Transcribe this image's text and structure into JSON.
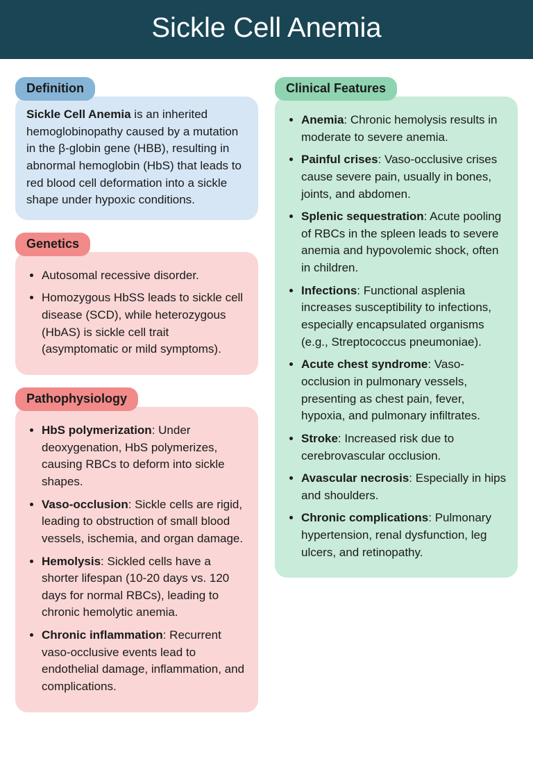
{
  "title": "Sickle Cell Anemia",
  "colors": {
    "header_bg": "#1a4555",
    "header_text": "#ffffff",
    "tag_blue": "#86b4d6",
    "box_blue": "#d6e6f5",
    "tag_red": "#f28a8a",
    "box_red": "#fad6d6",
    "tag_green": "#8fd4b0",
    "box_green": "#c9ebd9",
    "body_text": "#1a1a1a"
  },
  "typography": {
    "title_fontsize": 40,
    "tag_fontsize": 18,
    "body_fontsize": 17,
    "line_height": 1.45
  },
  "sections": {
    "definition": {
      "heading": "Definition",
      "paragraph": {
        "term": "Sickle Cell Anemia",
        "rest": " is an inherited hemoglobinopathy caused by a mutation in the β-globin gene (HBB), resulting in abnormal hemoglobin (HbS) that leads to red blood cell deformation into a sickle shape under hypoxic conditions."
      }
    },
    "genetics": {
      "heading": "Genetics",
      "items": [
        {
          "term": "",
          "rest": "Autosomal recessive disorder."
        },
        {
          "term": "",
          "rest": "Homozygous HbSS leads to sickle cell disease (SCD), while heterozygous (HbAS) is sickle cell trait (asymptomatic or mild symptoms)."
        }
      ]
    },
    "pathophysiology": {
      "heading": "Pathophysiology",
      "items": [
        {
          "term": "HbS polymerization",
          "rest": ": Under deoxygenation, HbS polymerizes, causing RBCs to deform into sickle shapes."
        },
        {
          "term": "Vaso-occlusion",
          "rest": ": Sickle cells are rigid, leading to obstruction of small blood vessels, ischemia, and organ damage."
        },
        {
          "term": "Hemolysis",
          "rest": ": Sickled cells have a shorter lifespan (10-20 days vs. 120 days for normal RBCs), leading to chronic hemolytic anemia."
        },
        {
          "term": "Chronic inflammation",
          "rest": ": Recurrent vaso-occlusive events lead to endothelial damage, inflammation, and complications."
        }
      ]
    },
    "clinical": {
      "heading": "Clinical Features",
      "items": [
        {
          "term": "Anemia",
          "rest": ": Chronic hemolysis results in moderate to severe anemia."
        },
        {
          "term": "Painful crises",
          "rest": ": Vaso-occlusive crises cause severe pain, usually in bones, joints, and abdomen."
        },
        {
          "term": "Splenic sequestration",
          "rest": ": Acute pooling of RBCs in the spleen leads to severe anemia and hypovolemic shock, often in children."
        },
        {
          "term": "Infections",
          "rest": ": Functional asplenia increases susceptibility to infections, especially encapsulated organisms (e.g., Streptococcus pneumoniae)."
        },
        {
          "term": "Acute chest syndrome",
          "rest": ": Vaso-occlusion in pulmonary vessels, presenting as chest pain, fever, hypoxia, and pulmonary infiltrates."
        },
        {
          "term": "Stroke",
          "rest": ": Increased risk due to cerebrovascular occlusion."
        },
        {
          "term": "Avascular necrosis",
          "rest": ": Especially in hips and shoulders."
        },
        {
          "term": "Chronic complications",
          "rest": ": Pulmonary hypertension, renal dysfunction, leg ulcers, and retinopathy."
        }
      ]
    }
  }
}
